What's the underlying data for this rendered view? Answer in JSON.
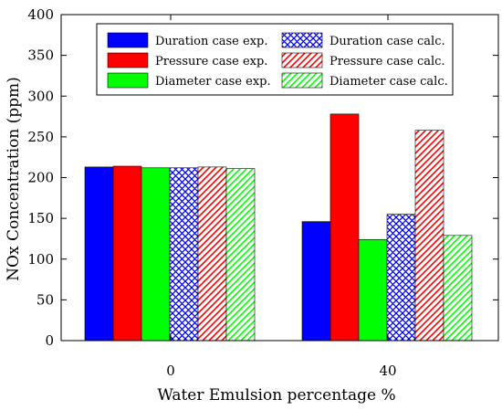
{
  "chart_data": {
    "type": "bar",
    "categories": [
      "0",
      "40"
    ],
    "xlabel": "Water Emulsion percentage %",
    "ylabel": "NOx Concentration (ppm)",
    "ylim": [
      0,
      400
    ],
    "yticks": [
      "0",
      "50",
      "100",
      "150",
      "200",
      "250",
      "300",
      "350",
      "400"
    ],
    "grid": false,
    "legend_position": "top",
    "series": [
      {
        "name": "Duration case exp.",
        "values": [
          213,
          146
        ],
        "color": "#0000ff",
        "pattern": "solid"
      },
      {
        "name": "Pressure case exp.",
        "values": [
          214,
          278
        ],
        "color": "#ff0000",
        "pattern": "solid"
      },
      {
        "name": "Diameter case exp.",
        "values": [
          212,
          124
        ],
        "color": "#00ff00",
        "pattern": "solid"
      },
      {
        "name": "Duration case calc.",
        "values": [
          212,
          155
        ],
        "color": "#0000ff",
        "pattern": "crosshatch"
      },
      {
        "name": "Pressure case calc.",
        "values": [
          213,
          258
        ],
        "color": "#ff0000",
        "pattern": "diagonal"
      },
      {
        "name": "Diameter case calc.",
        "values": [
          211,
          129
        ],
        "color": "#00ff00",
        "pattern": "diagonal"
      }
    ]
  }
}
